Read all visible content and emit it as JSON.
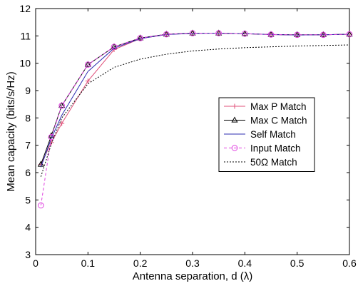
{
  "chart_data": {
    "type": "line",
    "title": "",
    "xlabel": "Antenna separation, d (λ)",
    "ylabel": "Mean capacity (bits/s/Hz)",
    "xlim": [
      0,
      0.6
    ],
    "ylim": [
      3,
      12
    ],
    "xticks": [
      "0",
      "0.1",
      "0.2",
      "0.3",
      "0.4",
      "0.5",
      "0.6"
    ],
    "yticks": [
      "3",
      "4",
      "5",
      "6",
      "7",
      "8",
      "9",
      "10",
      "11",
      "12"
    ],
    "grid": false,
    "legend_position": "center-right",
    "series": [
      {
        "name": "Max P Match",
        "color": "#e0507a",
        "dash": "solid",
        "marker": "plus",
        "x": [
          0.01,
          0.03,
          0.05,
          0.1,
          0.15,
          0.2,
          0.25,
          0.3,
          0.35,
          0.4,
          0.45,
          0.5,
          0.55,
          0.6
        ],
        "y": [
          6.3,
          7.1,
          7.8,
          9.35,
          10.5,
          10.9,
          11.05,
          11.1,
          11.1,
          11.08,
          11.05,
          11.03,
          11.04,
          11.06
        ]
      },
      {
        "name": "Max C Match",
        "color": "#000000",
        "dash": "solid",
        "marker": "triangle",
        "x": [
          0.01,
          0.03,
          0.05,
          0.1,
          0.15,
          0.2,
          0.25,
          0.3,
          0.35,
          0.4,
          0.45,
          0.5,
          0.55,
          0.6
        ],
        "y": [
          6.3,
          7.35,
          8.45,
          9.95,
          10.6,
          10.92,
          11.06,
          11.1,
          11.1,
          11.08,
          11.05,
          11.04,
          11.04,
          11.06
        ]
      },
      {
        "name": "Self Match",
        "color": "#2b2bb0",
        "dash": "solid",
        "marker": "none",
        "x": [
          0.01,
          0.03,
          0.05,
          0.1,
          0.15,
          0.2,
          0.25,
          0.3,
          0.35,
          0.4,
          0.45,
          0.5,
          0.55,
          0.6
        ],
        "y": [
          6.2,
          7.25,
          8.1,
          9.7,
          10.55,
          10.9,
          11.05,
          11.09,
          11.1,
          11.08,
          11.05,
          11.03,
          11.04,
          11.06
        ]
      },
      {
        "name": "Input Match",
        "color": "#e040e0",
        "dash": "dashed",
        "marker": "circle",
        "x": [
          0.01,
          0.03,
          0.05,
          0.1,
          0.15,
          0.2,
          0.25,
          0.3,
          0.35,
          0.4,
          0.45,
          0.5,
          0.55,
          0.6
        ],
        "y": [
          4.8,
          7.3,
          8.45,
          9.95,
          10.6,
          10.92,
          11.06,
          11.1,
          11.1,
          11.08,
          11.05,
          11.04,
          11.04,
          11.06
        ]
      },
      {
        "name": "50Ω Match",
        "color": "#000000",
        "dash": "dotted",
        "marker": "none",
        "x": [
          0.01,
          0.03,
          0.05,
          0.1,
          0.15,
          0.2,
          0.25,
          0.3,
          0.35,
          0.4,
          0.45,
          0.5,
          0.55,
          0.6
        ],
        "y": [
          5.85,
          7.05,
          8.0,
          9.25,
          9.85,
          10.15,
          10.33,
          10.45,
          10.52,
          10.57,
          10.6,
          10.63,
          10.65,
          10.67
        ]
      }
    ]
  }
}
